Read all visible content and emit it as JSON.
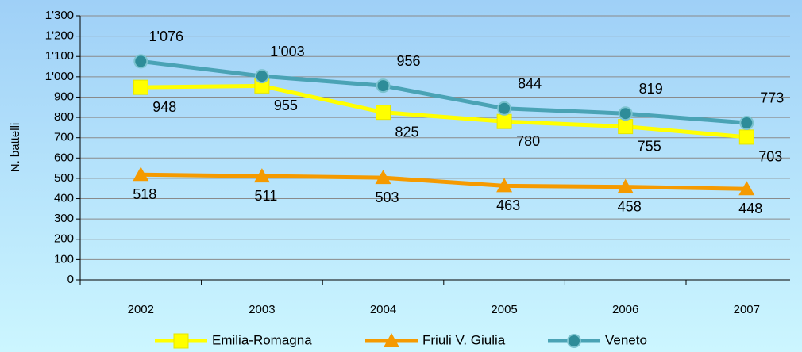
{
  "chart_data": {
    "type": "line",
    "y_label": "N. battelli",
    "categories": [
      "2002",
      "2003",
      "2004",
      "2005",
      "2006",
      "2007"
    ],
    "series": [
      {
        "name": "Emilia-Romagna",
        "color": "#ffff00",
        "marker": "square",
        "values": [
          948,
          955,
          825,
          780,
          755,
          703
        ]
      },
      {
        "name": "Friuli V. Giulia",
        "color": "#f59a00",
        "marker": "triangle",
        "values": [
          518,
          511,
          503,
          463,
          458,
          448
        ]
      },
      {
        "name": "Veneto",
        "color": "#4aa3b5",
        "marker": "circle",
        "values": [
          1076,
          1003,
          956,
          844,
          819,
          773
        ],
        "value_labels": [
          "1'076",
          "1'003",
          "956",
          "844",
          "819",
          "773"
        ]
      }
    ],
    "ylim": [
      0,
      1300
    ],
    "yticks": [
      0,
      100,
      200,
      300,
      400,
      500,
      600,
      700,
      800,
      900,
      {
        "value": 1000,
        "label": "1'000"
      },
      {
        "value": 1100,
        "label": "1'100"
      },
      {
        "value": 1200,
        "label": "1'200"
      },
      {
        "value": 1300,
        "label": "1'300"
      }
    ],
    "grid": true,
    "legend": "bottom"
  }
}
